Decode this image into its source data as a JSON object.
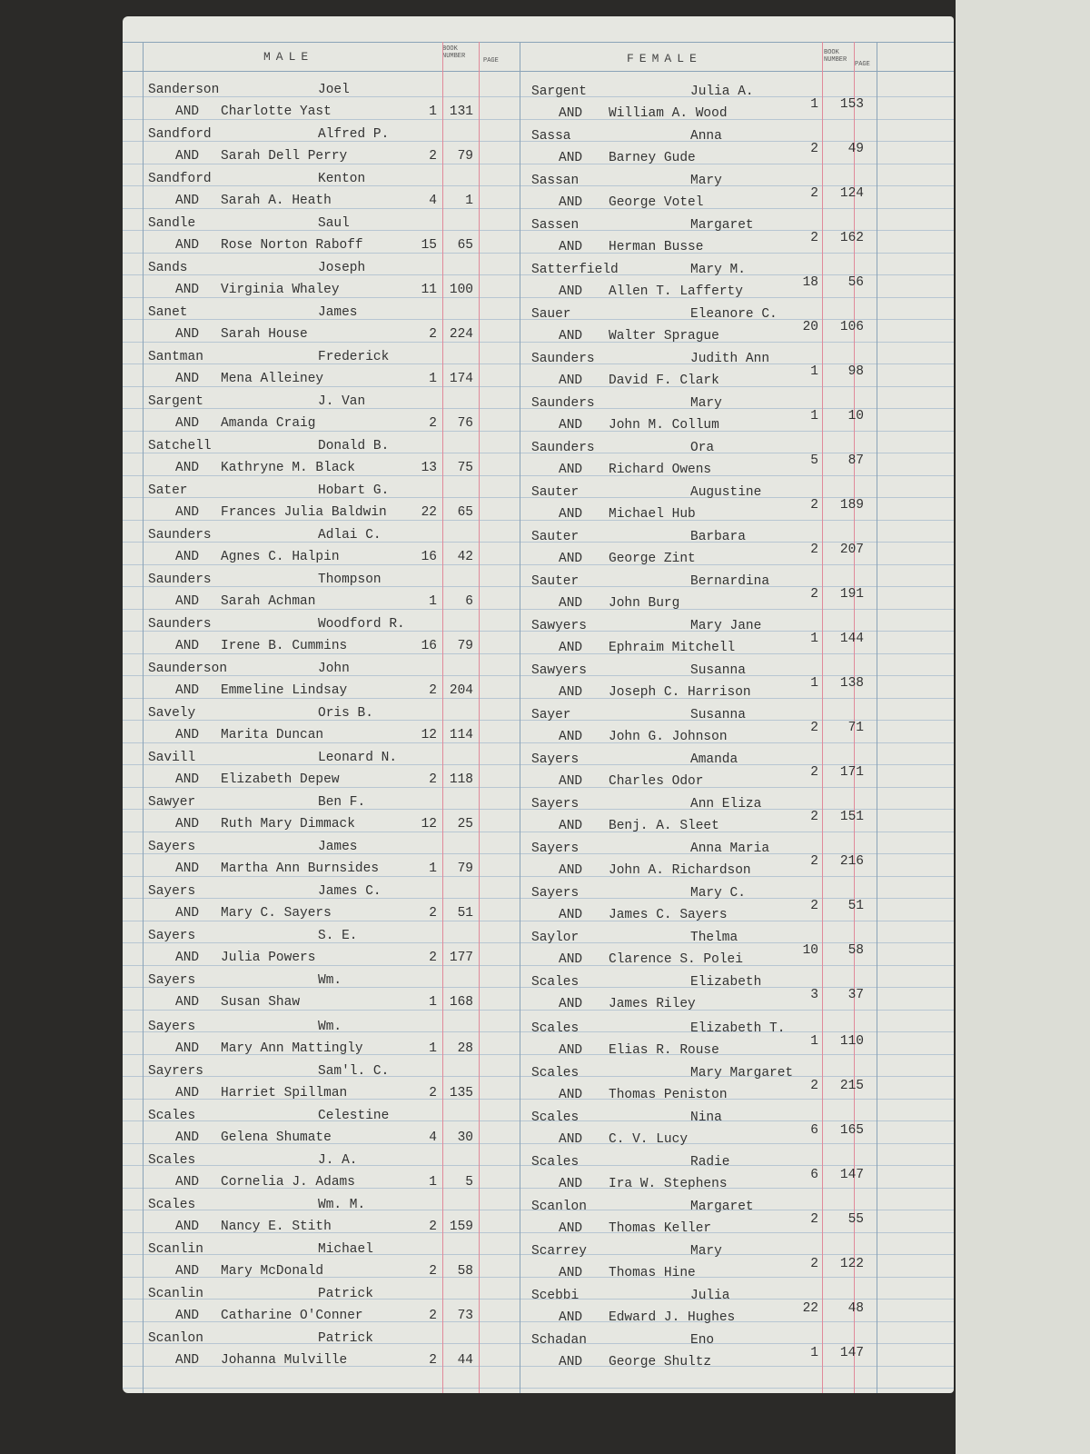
{
  "header": {
    "male": "MALE",
    "female": "FEMALE",
    "book": "BOOK NUMBER",
    "page": "PAGE"
  },
  "and_word": "AND",
  "male": [
    [
      "Sanderson",
      "Joel",
      "Charlotte Yast",
      1,
      131
    ],
    [
      "Sandford",
      "Alfred P.",
      "Sarah Dell Perry",
      2,
      79
    ],
    [
      "Sandford",
      "Kenton",
      "Sarah A. Heath",
      4,
      1
    ],
    [
      "Sandle",
      "Saul",
      "Rose Norton Raboff",
      15,
      65
    ],
    [
      "Sands",
      "Joseph",
      "Virginia Whaley",
      11,
      100
    ],
    [
      "Sanet",
      "James",
      "Sarah House",
      2,
      224
    ],
    [
      "Santman",
      "Frederick",
      "Mena Alleiney",
      1,
      174
    ],
    [
      "Sargent",
      "J. Van",
      "Amanda Craig",
      2,
      76
    ],
    [
      "Satchell",
      "Donald B.",
      "Kathryne M. Black",
      13,
      75
    ],
    [
      "Sater",
      "Hobart G.",
      "Frances Julia Baldwin",
      22,
      65
    ],
    [
      "Saunders",
      "Adlai C.",
      "Agnes C. Halpin",
      16,
      42
    ],
    [
      "Saunders",
      "Thompson",
      "Sarah Achman",
      1,
      6
    ],
    [
      "Saunders",
      "Woodford R.",
      "Irene B. Cummins",
      16,
      79
    ],
    [
      "Saunderson",
      "John",
      "Emmeline Lindsay",
      2,
      204
    ],
    [
      "Savely",
      "Oris B.",
      "Marita Duncan",
      12,
      114
    ],
    [
      "Savill",
      "Leonard N.",
      "Elizabeth Depew",
      2,
      118
    ],
    [
      "Sawyer",
      "Ben F.",
      "Ruth Mary Dimmack",
      12,
      25
    ],
    [
      "Sayers",
      "James",
      "Martha Ann Burnsides",
      1,
      79
    ],
    [
      "Sayers",
      "James C.",
      "Mary C. Sayers",
      2,
      51
    ],
    [
      "Sayers",
      "S. E.",
      "Julia Powers",
      2,
      177
    ],
    [
      "Sayers",
      "Wm.",
      "Susan Shaw",
      1,
      168
    ],
    [
      "Sayers",
      "Wm.",
      "Mary Ann Mattingly",
      1,
      28
    ],
    [
      "Sayrers",
      "Sam'l. C.",
      "Harriet Spillman",
      2,
      135
    ],
    [
      "Scales",
      "Celestine",
      "Gelena Shumate",
      4,
      30
    ],
    [
      "Scales",
      "J. A.",
      "Cornelia J. Adams",
      1,
      5
    ],
    [
      "Scales",
      "Wm. M.",
      "Nancy E. Stith",
      2,
      159
    ],
    [
      "Scanlin",
      "Michael",
      "Mary McDonald",
      2,
      58
    ],
    [
      "Scanlin",
      "Patrick",
      "Catharine O'Conner",
      2,
      73
    ],
    [
      "Scanlon",
      "Patrick",
      "Johanna Mulville",
      2,
      44
    ]
  ],
  "female": [
    [
      "Sargent",
      "Julia A.",
      "William A. Wood",
      1,
      153
    ],
    [
      "Sassa",
      "Anna",
      "Barney Gude",
      2,
      49
    ],
    [
      "Sassan",
      "Mary",
      "George Votel",
      2,
      124
    ],
    [
      "Sassen",
      "Margaret",
      "Herman Busse",
      2,
      162
    ],
    [
      "Satterfield",
      "Mary M.",
      "Allen T. Lafferty",
      18,
      56
    ],
    [
      "Sauer",
      "Eleanore C.",
      "Walter Sprague",
      20,
      106
    ],
    [
      "Saunders",
      "Judith Ann",
      "David F. Clark",
      1,
      98
    ],
    [
      "Saunders",
      "Mary",
      "John M. Collum",
      1,
      10
    ],
    [
      "Saunders",
      "Ora",
      "Richard Owens",
      5,
      87
    ],
    [
      "Sauter",
      "Augustine",
      "Michael Hub",
      2,
      189
    ],
    [
      "Sauter",
      "Barbara",
      "George Zint",
      2,
      207
    ],
    [
      "Sauter",
      "Bernardina",
      "John Burg",
      2,
      191
    ],
    [
      "Sawyers",
      "Mary Jane",
      "Ephraim Mitchell",
      1,
      144
    ],
    [
      "Sawyers",
      "Susanna",
      "Joseph C. Harrison",
      1,
      138
    ],
    [
      "Sayer",
      "Susanna",
      "John G. Johnson",
      2,
      71
    ],
    [
      "Sayers",
      "Amanda",
      "Charles Odor",
      2,
      171
    ],
    [
      "Sayers",
      "Ann Eliza",
      "Benj. A. Sleet",
      2,
      151
    ],
    [
      "Sayers",
      "Anna Maria",
      "John A. Richardson",
      2,
      216
    ],
    [
      "Sayers",
      "Mary C.",
      "James C. Sayers",
      2,
      51
    ],
    [
      "Saylor",
      "Thelma",
      "Clarence S. Polei",
      10,
      58
    ],
    [
      "Scales",
      "Elizabeth",
      "James Riley",
      3,
      37
    ],
    [
      "Scales",
      "Elizabeth T.",
      "Elias R. Rouse",
      1,
      110
    ],
    [
      "Scales",
      "Mary Margaret",
      "Thomas Peniston",
      2,
      215
    ],
    [
      "Scales",
      "Nina",
      "C. V. Lucy",
      6,
      165
    ],
    [
      "Scales",
      "Radie",
      "Ira W. Stephens",
      6,
      147
    ],
    [
      "Scanlon",
      "Margaret",
      "Thomas Keller",
      2,
      55
    ],
    [
      "Scarrey",
      "Mary",
      "Thomas Hine",
      2,
      122
    ],
    [
      "Scebbi",
      "Julia",
      "Edward J. Hughes",
      22,
      48
    ],
    [
      "Schadan",
      "Eno",
      "George Shultz",
      1,
      147
    ]
  ]
}
